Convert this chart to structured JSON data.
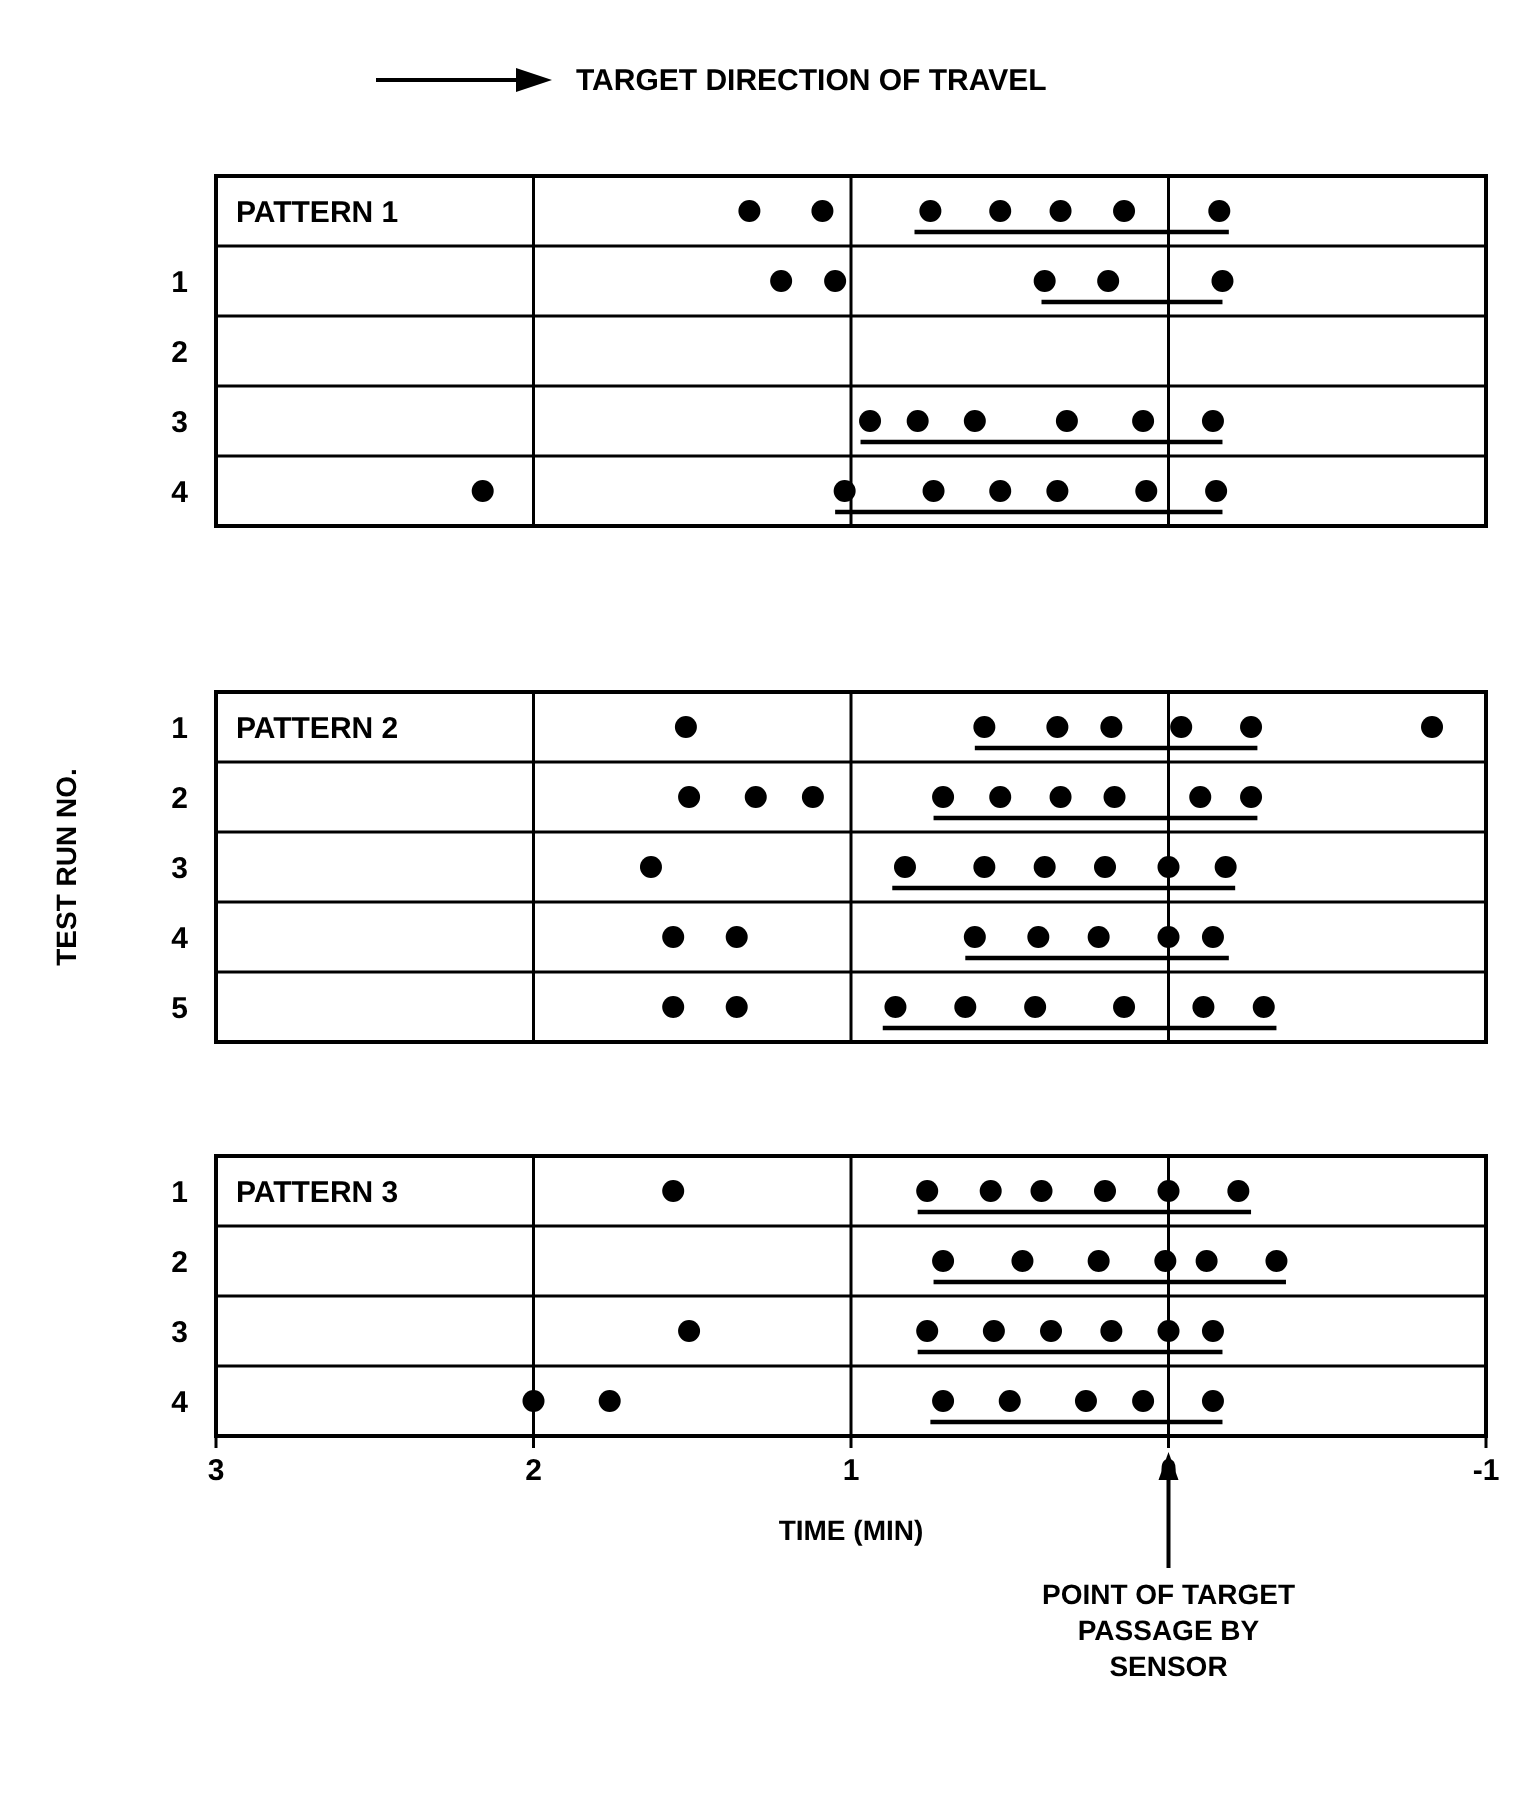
{
  "chart_data": [
    {
      "type": "scatter",
      "annotations": [
        "TARGET DIRECTION OF TRAVEL",
        "PATTERN 1"
      ],
      "xlim": [
        3,
        -1
      ],
      "xticks": [
        3,
        2,
        1,
        0,
        -1
      ],
      "ylim": [
        4.5,
        -0.5
      ],
      "yticks": [
        {
          "value": 1,
          "label": "1"
        },
        {
          "value": 2,
          "label": "2"
        },
        {
          "value": 3,
          "label": "3"
        },
        {
          "value": 4,
          "label": "4"
        }
      ],
      "tick_labels": "y",
      "grid": "x",
      "series": [
        {
          "marker": "circle",
          "color": "#000000",
          "x": [
            1.32,
            1.09,
            0.75,
            0.53,
            0.34,
            0.14,
            -0.16,
            1.22,
            1.05,
            0.39,
            0.19,
            -0.17,
            0.94,
            0.79,
            0.61,
            0.32,
            0.08,
            -0.14,
            2.16,
            1.02,
            0.74,
            0.53,
            0.35,
            0.07,
            -0.15
          ],
          "values": [
            0,
            0,
            0,
            0,
            0,
            0,
            0,
            1,
            1,
            1,
            1,
            1,
            3,
            3,
            3,
            3,
            3,
            3,
            4,
            4,
            4,
            4,
            4,
            4,
            4
          ]
        },
        {
          "type": "line",
          "color": "#000000",
          "x": [
            0.8,
            -0.19
          ],
          "values": [
            0.3,
            0.3
          ]
        },
        {
          "type": "line",
          "color": "#000000",
          "x": [
            0.4,
            -0.17
          ],
          "values": [
            1.3,
            1.3
          ]
        },
        {
          "type": "line",
          "color": "#000000",
          "x": [
            0.97,
            -0.17
          ],
          "values": [
            3.3,
            3.3
          ]
        },
        {
          "type": "line",
          "color": "#000000",
          "x": [
            1.05,
            -0.17
          ],
          "values": [
            4.3,
            4.3
          ]
        }
      ]
    },
    {
      "type": "scatter",
      "ylabel": "TEST RUN NO.",
      "annotations": [
        "PATTERN 2"
      ],
      "xlim": [
        3,
        -1
      ],
      "xticks": [
        3,
        2,
        1,
        0,
        -1
      ],
      "ylim": [
        5.5,
        0.5
      ],
      "yticks": [
        {
          "value": 1,
          "label": "1"
        },
        {
          "value": 2,
          "label": "2"
        },
        {
          "value": 3,
          "label": "3"
        },
        {
          "value": 4,
          "label": "4"
        },
        {
          "value": 5,
          "label": "5"
        }
      ],
      "tick_labels": "y",
      "grid": "x",
      "series": [
        {
          "marker": "circle",
          "color": "#000000",
          "x": [
            1.52,
            0.58,
            0.35,
            0.18,
            -0.04,
            -0.26,
            -0.83,
            1.51,
            1.3,
            1.12,
            0.71,
            0.53,
            0.34,
            0.17,
            -0.1,
            -0.26,
            1.63,
            0.83,
            0.58,
            0.39,
            0.2,
            0,
            -0.18,
            1.56,
            1.36,
            0.61,
            0.41,
            0.22,
            0,
            -0.14,
            1.56,
            1.36,
            0.86,
            0.64,
            0.42,
            0.14,
            -0.11,
            -0.3
          ],
          "values": [
            1,
            1,
            1,
            1,
            1,
            1,
            1,
            2,
            2,
            2,
            2,
            2,
            2,
            2,
            2,
            2,
            3,
            3,
            3,
            3,
            3,
            3,
            3,
            4,
            4,
            4,
            4,
            4,
            4,
            4,
            5,
            5,
            5,
            5,
            5,
            5,
            5,
            5
          ]
        },
        {
          "type": "line",
          "color": "#000000",
          "x": [
            0.61,
            -0.28
          ],
          "values": [
            1.3,
            1.3
          ]
        },
        {
          "type": "line",
          "color": "#000000",
          "x": [
            0.74,
            -0.28
          ],
          "values": [
            2.3,
            2.3
          ]
        },
        {
          "type": "line",
          "color": "#000000",
          "x": [
            0.87,
            -0.21
          ],
          "values": [
            3.3,
            3.3
          ]
        },
        {
          "type": "line",
          "color": "#000000",
          "x": [
            0.64,
            -0.19
          ],
          "values": [
            4.3,
            4.3
          ]
        },
        {
          "type": "line",
          "color": "#000000",
          "x": [
            0.9,
            -0.34
          ],
          "values": [
            5.3,
            5.3
          ]
        }
      ]
    },
    {
      "type": "scatter",
      "xlabel": "TIME (MIN)",
      "annotations": [
        "PATTERN 3",
        {
          "text": "POINT OF TARGET PASSAGE BY SENSOR",
          "x": 0
        }
      ],
      "xlim": [
        3,
        -1
      ],
      "xticks": [
        3,
        2,
        1,
        0,
        -1
      ],
      "ylim": [
        4.5,
        0.5
      ],
      "yticks": [
        {
          "value": 1,
          "label": "1"
        },
        {
          "value": 2,
          "label": "2"
        },
        {
          "value": 3,
          "label": "3"
        },
        {
          "value": 4,
          "label": "4"
        }
      ],
      "grid": "x",
      "series": [
        {
          "marker": "circle",
          "color": "#000000",
          "x": [
            1.56,
            0.76,
            0.56,
            0.4,
            0.2,
            0,
            -0.22,
            0.71,
            0.46,
            0.22,
            0.01,
            -0.12,
            -0.34,
            1.51,
            0.76,
            0.55,
            0.37,
            0.18,
            0,
            -0.14,
            2.0,
            1.76,
            0.71,
            0.5,
            0.26,
            0.08,
            -0.14
          ],
          "values": [
            1,
            1,
            1,
            1,
            1,
            1,
            1,
            2,
            2,
            2,
            2,
            2,
            2,
            3,
            3,
            3,
            3,
            3,
            3,
            3,
            4,
            4,
            4,
            4,
            4,
            4,
            4
          ]
        },
        {
          "type": "line",
          "color": "#000000",
          "x": [
            0.79,
            -0.26
          ],
          "values": [
            1.3,
            1.3
          ]
        },
        {
          "type": "line",
          "color": "#000000",
          "x": [
            0.74,
            -0.37
          ],
          "values": [
            2.3,
            2.3
          ]
        },
        {
          "type": "line",
          "color": "#000000",
          "x": [
            0.79,
            -0.17
          ],
          "values": [
            3.3,
            3.3
          ]
        },
        {
          "type": "line",
          "color": "#000000",
          "x": [
            0.75,
            -0.17
          ],
          "values": [
            4.3,
            4.3
          ]
        }
      ]
    }
  ]
}
